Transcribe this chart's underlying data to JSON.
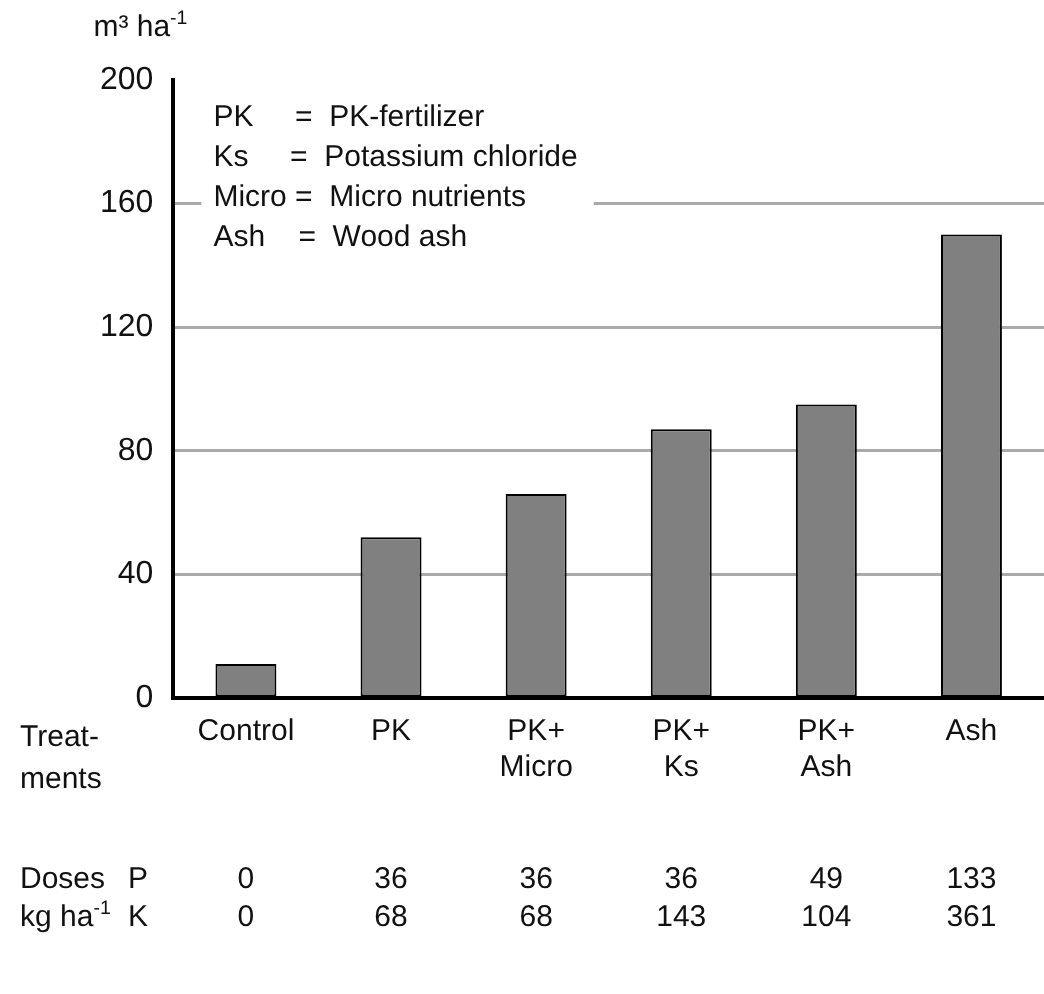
{
  "chart_data": {
    "type": "bar",
    "ylabel": "m³ ha$^{-1}$",
    "xlabel": "Treat-\nments",
    "categories": [
      "Control",
      "PK",
      "PK+\nMicro",
      "PK+\nKs",
      "PK+\nAsh",
      "Ash"
    ],
    "values": [
      11,
      52,
      66,
      87,
      95,
      150
    ],
    "color": "#808080",
    "ylim": [
      0,
      200
    ],
    "yticks": [
      0,
      40,
      80,
      120,
      160,
      200
    ],
    "grid": "y",
    "legend": false,
    "annotations": [
      "PK     =  PK-fertilizer\nKs     =  Potassium chloride\nMicro =  Micro nutrients\nAsh    =  Wood ash",
      "Doses\nkg ha$^{-1}$",
      "P\nK",
      "0\n0",
      "36\n68",
      "36\n68",
      "36\n143",
      "49\n104",
      "133\n361"
    ]
  }
}
